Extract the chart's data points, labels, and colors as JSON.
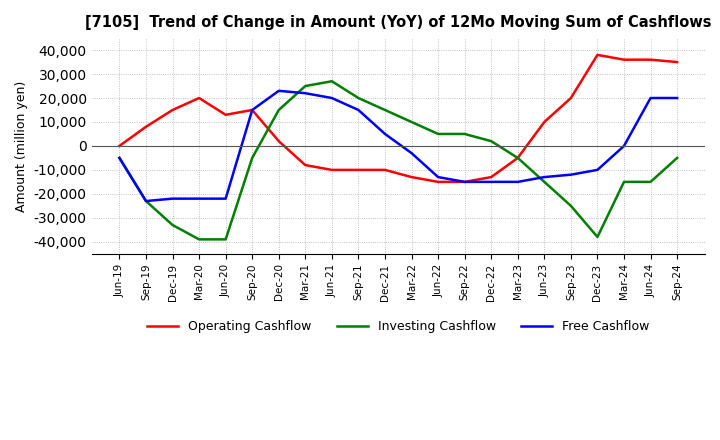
{
  "title": "[7105]  Trend of Change in Amount (YoY) of 12Mo Moving Sum of Cashflows",
  "ylabel": "Amount (million yen)",
  "ylim": [
    -45000,
    45000
  ],
  "yticks": [
    -40000,
    -30000,
    -20000,
    -10000,
    0,
    10000,
    20000,
    30000,
    40000
  ],
  "x_labels": [
    "Jun-19",
    "Sep-19",
    "Dec-19",
    "Mar-20",
    "Jun-20",
    "Sep-20",
    "Dec-20",
    "Mar-21",
    "Jun-21",
    "Sep-21",
    "Dec-21",
    "Mar-22",
    "Jun-22",
    "Sep-22",
    "Dec-22",
    "Mar-23",
    "Jun-23",
    "Sep-23",
    "Dec-23",
    "Mar-24",
    "Jun-24",
    "Sep-24"
  ],
  "operating_cashflow": [
    0,
    8000,
    15000,
    20000,
    13000,
    15000,
    2000,
    -8000,
    -10000,
    -10000,
    -10000,
    -13000,
    -15000,
    -15000,
    -13000,
    -5000,
    10000,
    20000,
    38000,
    36000,
    36000,
    35000
  ],
  "investing_cashflow": [
    -5000,
    -23000,
    -33000,
    -39000,
    -39000,
    -5000,
    15000,
    25000,
    27000,
    20000,
    15000,
    10000,
    5000,
    5000,
    2000,
    -5000,
    -15000,
    -25000,
    -38000,
    -15000,
    -15000,
    -5000
  ],
  "free_cashflow": [
    -5000,
    -23000,
    -22000,
    -22000,
    -22000,
    15000,
    23000,
    22000,
    20000,
    15000,
    5000,
    -3000,
    -13000,
    -15000,
    -15000,
    -15000,
    -13000,
    -12000,
    -10000,
    0,
    20000,
    20000
  ],
  "operating_color": "#ff0000",
  "investing_color": "#008000",
  "free_color": "#0000ff",
  "background_color": "#ffffff",
  "grid_color": "#b0b0b0",
  "grid_style": "dotted"
}
